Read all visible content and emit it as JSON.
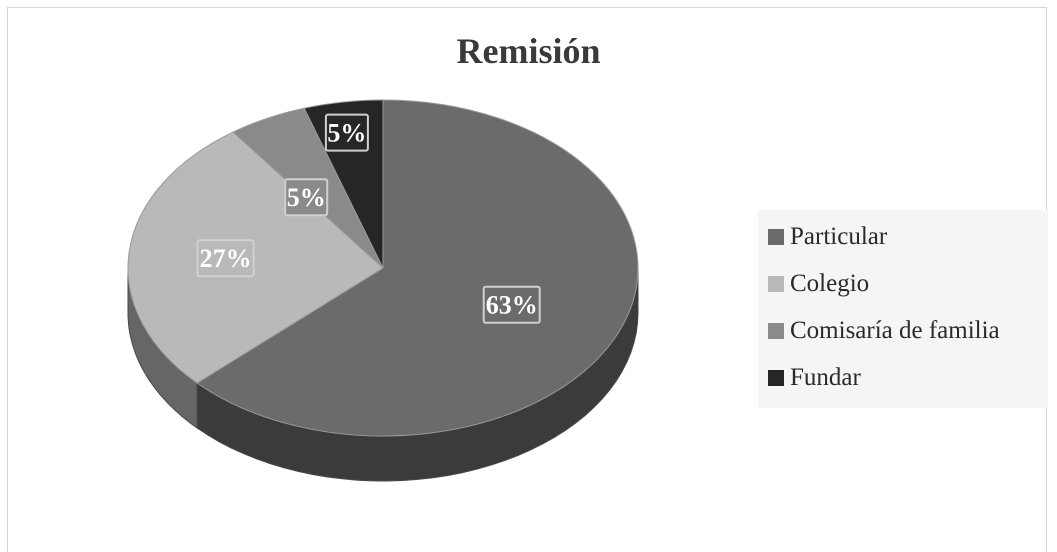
{
  "chart_data": {
    "type": "pie",
    "title": "Remisión",
    "three_d": true,
    "legend_position": "right",
    "slices": [
      {
        "name": "Particular",
        "value": 63,
        "label": "63%",
        "color": "#6b6b6b"
      },
      {
        "name": "Colegio",
        "value": 27,
        "label": "27%",
        "color": "#b9b9b9"
      },
      {
        "name": "Comisaría de familia",
        "value": 5,
        "label": "5%",
        "color": "#8a8a8a"
      },
      {
        "name": "Fundar",
        "value": 5,
        "label": "5%",
        "color": "#262626"
      }
    ]
  }
}
